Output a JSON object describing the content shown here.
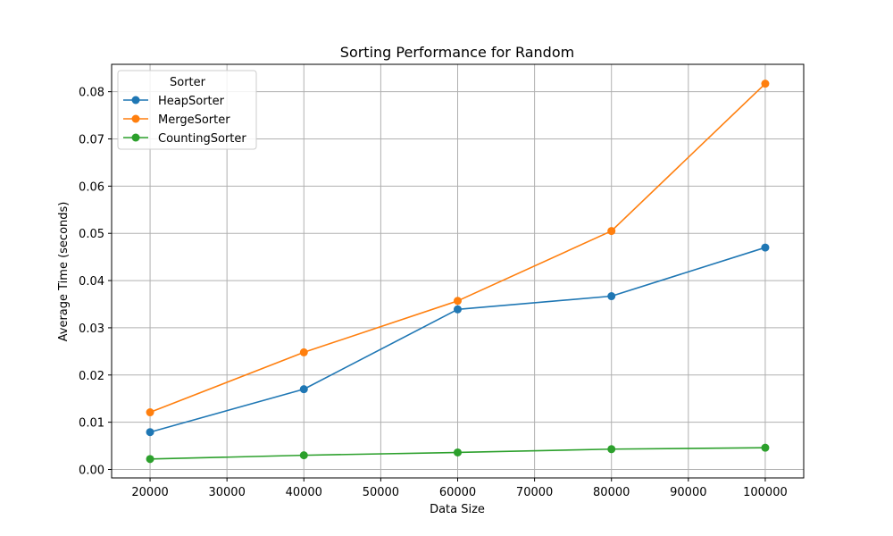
{
  "chart_data": {
    "type": "line",
    "title": "Sorting Performance for Random",
    "xlabel": "Data Size",
    "ylabel": "Average Time (seconds)",
    "xlim": [
      15000,
      105000
    ],
    "ylim": [
      -0.0018,
      0.0858
    ],
    "x_ticks": [
      20000,
      30000,
      40000,
      50000,
      60000,
      70000,
      80000,
      90000,
      100000
    ],
    "y_ticks": [
      0.0,
      0.01,
      0.02,
      0.03,
      0.04,
      0.05,
      0.06,
      0.07,
      0.08
    ],
    "x_tick_labels": [
      "20000",
      "30000",
      "40000",
      "50000",
      "60000",
      "70000",
      "80000",
      "90000",
      "100000"
    ],
    "y_tick_labels": [
      "0.00",
      "0.01",
      "0.02",
      "0.03",
      "0.04",
      "0.05",
      "0.06",
      "0.07",
      "0.08"
    ],
    "grid": true,
    "legend": {
      "title": "Sorter",
      "position": "top-left"
    },
    "x": [
      20000,
      40000,
      60000,
      80000,
      100000
    ],
    "series": [
      {
        "name": "HeapSorter",
        "color": "#1f77b4",
        "values": [
          0.0079,
          0.017,
          0.0339,
          0.0367,
          0.047
        ]
      },
      {
        "name": "MergeSorter",
        "color": "#ff7f0e",
        "values": [
          0.0121,
          0.0248,
          0.0357,
          0.0505,
          0.0817
        ]
      },
      {
        "name": "CountingSorter",
        "color": "#2ca02c",
        "values": [
          0.0022,
          0.003,
          0.0036,
          0.0043,
          0.0046
        ]
      }
    ]
  }
}
